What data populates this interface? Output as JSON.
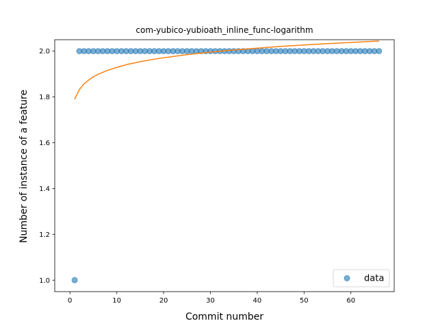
{
  "chart_data": {
    "type": "scatter",
    "title": "com-yubico-yubioath_inline_func-logarithm",
    "xlabel": "Commit number",
    "ylabel": "Number of instance of a feature",
    "xlim": [
      -3.25,
      69.25
    ],
    "ylim": [
      0.95,
      2.05
    ],
    "xticks": [
      0,
      10,
      20,
      30,
      40,
      50,
      60
    ],
    "yticks": [
      1.0,
      1.2,
      1.4,
      1.6,
      1.8,
      2.0
    ],
    "xtick_labels": [
      "0",
      "10",
      "20",
      "30",
      "40",
      "50",
      "60"
    ],
    "ytick_labels": [
      "1.0",
      "1.2",
      "1.4",
      "1.6",
      "1.8",
      "2.0"
    ],
    "grid": false,
    "legend_position": "lower-right",
    "series": [
      {
        "name": "data",
        "kind": "scatter",
        "color": "#1f77b4",
        "x": [
          1,
          2,
          3,
          4,
          5,
          6,
          7,
          8,
          9,
          10,
          11,
          12,
          13,
          14,
          15,
          16,
          17,
          18,
          19,
          20,
          21,
          22,
          23,
          24,
          25,
          26,
          27,
          28,
          29,
          30,
          31,
          32,
          33,
          34,
          35,
          36,
          37,
          38,
          39,
          40,
          41,
          42,
          43,
          44,
          45,
          46,
          47,
          48,
          49,
          50,
          51,
          52,
          53,
          54,
          55,
          56,
          57,
          58,
          59,
          60,
          61,
          62,
          63,
          64,
          65,
          66
        ],
        "y": [
          1,
          2,
          2,
          2,
          2,
          2,
          2,
          2,
          2,
          2,
          2,
          2,
          2,
          2,
          2,
          2,
          2,
          2,
          2,
          2,
          2,
          2,
          2,
          2,
          2,
          2,
          2,
          2,
          2,
          2,
          2,
          2,
          2,
          2,
          2,
          2,
          2,
          2,
          2,
          2,
          2,
          2,
          2,
          2,
          2,
          2,
          2,
          2,
          2,
          2,
          2,
          2,
          2,
          2,
          2,
          2,
          2,
          2,
          2,
          2,
          2,
          2,
          2,
          2,
          2,
          2
        ]
      },
      {
        "kind": "line",
        "color": "#ff7f0e",
        "x": [
          1,
          2,
          3,
          4,
          5,
          6,
          8,
          10,
          12,
          15,
          18,
          20,
          25,
          30,
          35,
          40,
          45,
          50,
          55,
          60,
          66
        ],
        "y": [
          1.79,
          1.832,
          1.857,
          1.874,
          1.888,
          1.899,
          1.916,
          1.929,
          1.941,
          1.954,
          1.965,
          1.971,
          1.985,
          1.996,
          2.005,
          2.013,
          2.021,
          2.027,
          2.033,
          2.038,
          2.044
        ]
      }
    ]
  }
}
